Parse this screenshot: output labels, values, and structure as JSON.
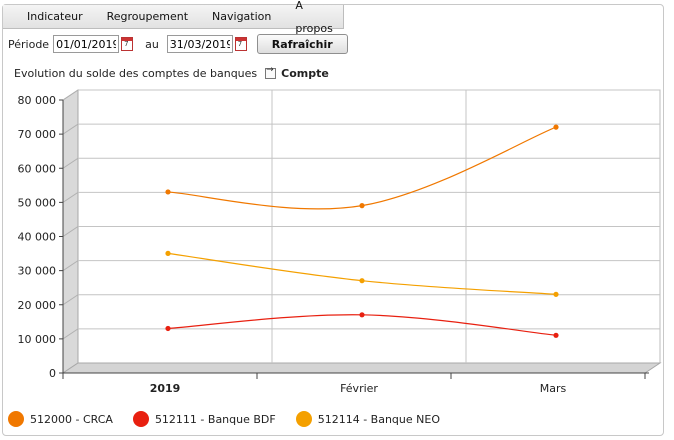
{
  "menu": {
    "items": [
      "Indicateur",
      "Regroupement",
      "Navigation",
      "A propos"
    ]
  },
  "toolbar": {
    "period_label": "Période",
    "start_date": "01/01/2019",
    "to_label": "au",
    "end_date": "31/03/2019",
    "refresh_label": "Rafraîchir"
  },
  "header": {
    "title": "Evolution du solde des comptes de banques",
    "link_label": "Compte"
  },
  "chart_data": {
    "type": "line",
    "categories": [
      "2019",
      "Février",
      "Mars"
    ],
    "ylim": [
      0,
      80000
    ],
    "yticks": [
      "0",
      "10 000",
      "20 000",
      "30 000",
      "40 000",
      "50 000",
      "60 000",
      "70 000",
      "80 000"
    ],
    "grid": true,
    "legend_position": "bottom",
    "series": [
      {
        "name": "512000 - CRCA",
        "color": "#f07800",
        "values": [
          51000,
          47000,
          70000
        ]
      },
      {
        "name": "512111 - Banque BDF",
        "color": "#e82010",
        "values": [
          11000,
          15000,
          9000
        ]
      },
      {
        "name": "512114 - Banque NEO",
        "color": "#f4a000",
        "values": [
          33000,
          25000,
          21000
        ]
      }
    ]
  }
}
